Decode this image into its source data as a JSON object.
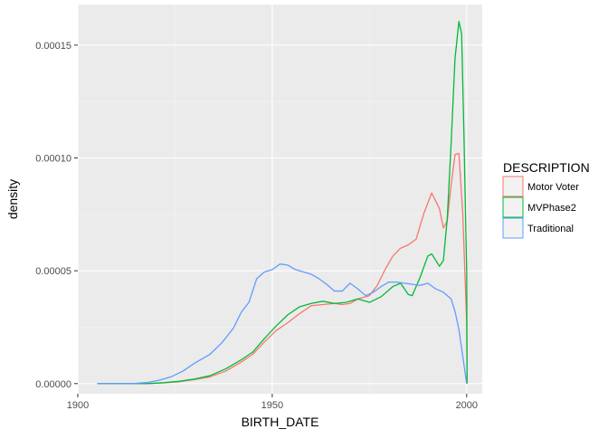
{
  "chart_data": {
    "type": "line",
    "subtype": "density",
    "xlabel": "BIRTH_DATE",
    "ylabel": "density",
    "xlim": [
      1900,
      2004
    ],
    "ylim": [
      -4.5e-06,
      0.000168
    ],
    "x_ticks": [
      1900,
      1950,
      2000
    ],
    "x_tick_labels": [
      "1900",
      "1950",
      "2000"
    ],
    "y_ticks": [
      0,
      5e-05,
      0.0001,
      0.00015
    ],
    "y_tick_labels": [
      "0.00000",
      "0.00005",
      "0.00010",
      "0.00015"
    ],
    "grid": true,
    "legend": {
      "title": "DESCRIPTION",
      "position": "right"
    },
    "series": [
      {
        "name": "Motor Voter",
        "color": "#F8766D",
        "points": [
          [
            1905,
            0
          ],
          [
            1918,
            0
          ],
          [
            1922,
            3e-07
          ],
          [
            1926,
            8e-07
          ],
          [
            1930,
            1.8e-06
          ],
          [
            1934,
            3e-06
          ],
          [
            1938,
            5.5e-06
          ],
          [
            1942,
            9.5e-06
          ],
          [
            1945,
            1.3e-05
          ],
          [
            1948,
            1.85e-05
          ],
          [
            1951,
            2.35e-05
          ],
          [
            1954,
            2.7e-05
          ],
          [
            1957,
            3.1e-05
          ],
          [
            1960,
            3.45e-05
          ],
          [
            1963,
            3.5e-05
          ],
          [
            1966,
            3.55e-05
          ],
          [
            1968,
            3.5e-05
          ],
          [
            1970,
            3.55e-05
          ],
          [
            1972,
            3.75e-05
          ],
          [
            1975,
            3.9e-05
          ],
          [
            1977,
            4.35e-05
          ],
          [
            1979,
            5.05e-05
          ],
          [
            1981,
            5.65e-05
          ],
          [
            1983,
            6e-05
          ],
          [
            1985,
            6.15e-05
          ],
          [
            1987,
            6.4e-05
          ],
          [
            1989,
            7.55e-05
          ],
          [
            1991,
            8.45e-05
          ],
          [
            1993,
            7.75e-05
          ],
          [
            1994,
            6.9e-05
          ],
          [
            1995,
            7.2e-05
          ],
          [
            1996,
            8.8e-05
          ],
          [
            1997,
            0.0001015
          ],
          [
            1998,
            0.000102
          ],
          [
            1999,
            7.5e-05
          ],
          [
            2000,
            2.7e-05
          ],
          [
            2000.1,
            0
          ]
        ]
      },
      {
        "name": "MVPhase2",
        "color": "#00BA38",
        "points": [
          [
            1905,
            0
          ],
          [
            1918,
            0
          ],
          [
            1922,
            4e-07
          ],
          [
            1926,
            1e-06
          ],
          [
            1930,
            2e-06
          ],
          [
            1934,
            3.5e-06
          ],
          [
            1938,
            6.5e-06
          ],
          [
            1942,
            1.05e-05
          ],
          [
            1945,
            1.4e-05
          ],
          [
            1948,
            2e-05
          ],
          [
            1951,
            2.55e-05
          ],
          [
            1954,
            3.05e-05
          ],
          [
            1957,
            3.4e-05
          ],
          [
            1960,
            3.55e-05
          ],
          [
            1963,
            3.65e-05
          ],
          [
            1966,
            3.55e-05
          ],
          [
            1969,
            3.6e-05
          ],
          [
            1972,
            3.75e-05
          ],
          [
            1975,
            3.6e-05
          ],
          [
            1978,
            3.85e-05
          ],
          [
            1981,
            4.3e-05
          ],
          [
            1983,
            4.45e-05
          ],
          [
            1985,
            3.95e-05
          ],
          [
            1986,
            3.9e-05
          ],
          [
            1988,
            4.7e-05
          ],
          [
            1990,
            5.65e-05
          ],
          [
            1991,
            5.75e-05
          ],
          [
            1993,
            5.2e-05
          ],
          [
            1994,
            5.45e-05
          ],
          [
            1995,
            7.3e-05
          ],
          [
            1996,
            0.0001065
          ],
          [
            1997,
            0.000144
          ],
          [
            1998,
            0.0001605
          ],
          [
            1998.7,
            0.000155
          ],
          [
            1999.3,
            0.00011
          ],
          [
            2000,
            5e-05
          ],
          [
            2000.1,
            0
          ]
        ]
      },
      {
        "name": "Traditional",
        "color": "#619CFF",
        "points": [
          [
            1905,
            0
          ],
          [
            1910,
            0
          ],
          [
            1914,
            0
          ],
          [
            1918,
            5e-07
          ],
          [
            1921,
            1.5e-06
          ],
          [
            1924,
            3e-06
          ],
          [
            1927,
            5.5e-06
          ],
          [
            1930,
            9e-06
          ],
          [
            1934,
            1.3e-05
          ],
          [
            1937,
            1.8e-05
          ],
          [
            1940,
            2.45e-05
          ],
          [
            1942,
            3.15e-05
          ],
          [
            1944,
            3.6e-05
          ],
          [
            1946,
            4.65e-05
          ],
          [
            1948,
            4.95e-05
          ],
          [
            1950,
            5.05e-05
          ],
          [
            1952,
            5.3e-05
          ],
          [
            1954,
            5.25e-05
          ],
          [
            1956,
            5.05e-05
          ],
          [
            1958,
            4.95e-05
          ],
          [
            1960,
            4.85e-05
          ],
          [
            1962,
            4.65e-05
          ],
          [
            1964,
            4.4e-05
          ],
          [
            1966,
            4.1e-05
          ],
          [
            1968,
            4.1e-05
          ],
          [
            1970,
            4.45e-05
          ],
          [
            1972,
            4.2e-05
          ],
          [
            1974,
            3.9e-05
          ],
          [
            1976,
            4.05e-05
          ],
          [
            1978,
            4.3e-05
          ],
          [
            1980,
            4.5e-05
          ],
          [
            1982,
            4.5e-05
          ],
          [
            1984,
            4.45e-05
          ],
          [
            1986,
            4.4e-05
          ],
          [
            1988,
            4.35e-05
          ],
          [
            1990,
            4.45e-05
          ],
          [
            1992,
            4.2e-05
          ],
          [
            1994,
            4.05e-05
          ],
          [
            1996,
            3.75e-05
          ],
          [
            1997,
            3.2e-05
          ],
          [
            1998,
            2.4e-05
          ],
          [
            1999,
            1.2e-05
          ],
          [
            2000,
            0
          ]
        ]
      }
    ]
  }
}
